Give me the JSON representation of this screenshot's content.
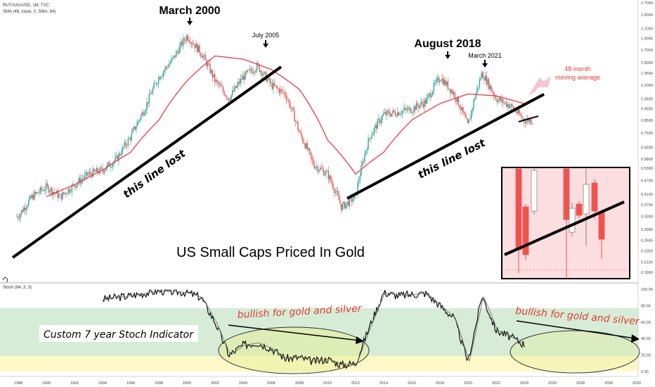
{
  "header": {
    "symbol_line": "RUT/XAUUSD, 1M, TVC",
    "sma_line": "SMA (48, close, 0, SMA, 84)",
    "stoch_label": "Stoch (84, 3, 3)"
  },
  "colors": {
    "up": "#26a69a",
    "down": "#ef5350",
    "sma": "#f23645",
    "stoch": "#000000",
    "trendline": "#000000",
    "band_green": "#c8e6c9",
    "band_yellow": "#fff9c4",
    "ellipse_fill": "#e6ee9c",
    "inset_bg": "#fcdde0"
  },
  "annotations": {
    "march2000": "March 2000",
    "july2005": "July 2005",
    "august2018": "August 2018",
    "march2021": "March 2021",
    "ma_label_1": "48 month",
    "ma_label_2": "moving average",
    "line_lost_1": "this line lost",
    "line_lost_2": "this line lost",
    "center_title": "US Small Caps Priced In Gold",
    "stoch_title": "Custom 7 year Stoch Indicator",
    "bullish_1": "bullish for gold and silver",
    "bullish_2": "bullish for gold and silver"
  },
  "chart_data": {
    "type": "line",
    "title": "US Small Caps Priced In Gold",
    "series": [
      {
        "name": "RUT/XAUUSD",
        "x": [
          1988,
          1989,
          1990,
          1991,
          1992,
          1993,
          1994,
          1995,
          1996,
          1997,
          1998,
          1999,
          2000,
          2001,
          2002,
          2003,
          2004,
          2005,
          2006,
          2007,
          2008,
          2009,
          2010,
          2011,
          2012,
          2013,
          2014,
          2015,
          2016,
          2017,
          2018,
          2019,
          2020,
          2021,
          2022,
          2023,
          2024
        ],
        "values": [
          0.33,
          0.4,
          0.44,
          0.4,
          0.45,
          0.5,
          0.52,
          0.58,
          0.72,
          0.95,
          1.3,
          1.55,
          1.95,
          1.65,
          1.25,
          1.05,
          1.3,
          1.45,
          1.2,
          1.1,
          0.75,
          0.55,
          0.5,
          0.36,
          0.4,
          0.72,
          0.9,
          0.92,
          0.95,
          1.02,
          1.3,
          1.1,
          0.8,
          1.35,
          1.05,
          0.98,
          0.85
        ]
      },
      {
        "name": "SMA (48, close, 0, SMA, 84)",
        "x": [
          1990,
          1992,
          1994,
          1996,
          1998,
          2000,
          2002,
          2004,
          2006,
          2008,
          2010,
          2012,
          2014,
          2016,
          2018,
          2020,
          2022,
          2024
        ],
        "values": [
          0.4,
          0.45,
          0.52,
          0.62,
          0.85,
          1.25,
          1.6,
          1.55,
          1.4,
          1.15,
          0.7,
          0.5,
          0.62,
          0.85,
          1.0,
          1.1,
          1.08,
          1.0
        ]
      },
      {
        "name": "Stoch (84, 3, 3)",
        "x": [
          1994,
          1996,
          1998,
          2000,
          2001,
          2002,
          2003,
          2004,
          2005,
          2006,
          2007,
          2008,
          2009,
          2010,
          2011,
          2012,
          2013,
          2014,
          2015,
          2017,
          2018,
          2019,
          2020,
          2021,
          2022,
          2023,
          2024
        ],
        "values": [
          88,
          92,
          98,
          96,
          90,
          60,
          20,
          32,
          35,
          28,
          16,
          17,
          12,
          15,
          8,
          10,
          55,
          96,
          92,
          95,
          80,
          65,
          12,
          92,
          50,
          42,
          33
        ]
      }
    ],
    "x_ticks": [
      "1988",
      "1990",
      "1992",
      "1994",
      "1996",
      "1998",
      "2000",
      "2002",
      "2004",
      "2006",
      "2008",
      "2010",
      "2012",
      "2014",
      "2016",
      "2018",
      "2020",
      "2022",
      "2024",
      "2026",
      "2028",
      "2030",
      "2032"
    ],
    "price_ticks": [
      "2.7000",
      "2.4000",
      "2.1000",
      "1.9000",
      "1.7000",
      "1.5000",
      "1.3500",
      "1.2000",
      "1.0500",
      "0.9500",
      "0.8500",
      "0.7500",
      "0.6500",
      "0.5800",
      "0.5300",
      "0.4700",
      "0.4100",
      "0.3700",
      "0.3300",
      "0.2900",
      "0.2600",
      "0.2350",
      "0.2100",
      "0.1900"
    ],
    "stoch_ticks": [
      "100.00",
      "80.00",
      "60.00",
      "40.00",
      "20.00",
      "0.00"
    ],
    "price_scale": "log",
    "xlim": [
      1987,
      2032
    ],
    "ylim": [
      0.18,
      2.8
    ]
  }
}
